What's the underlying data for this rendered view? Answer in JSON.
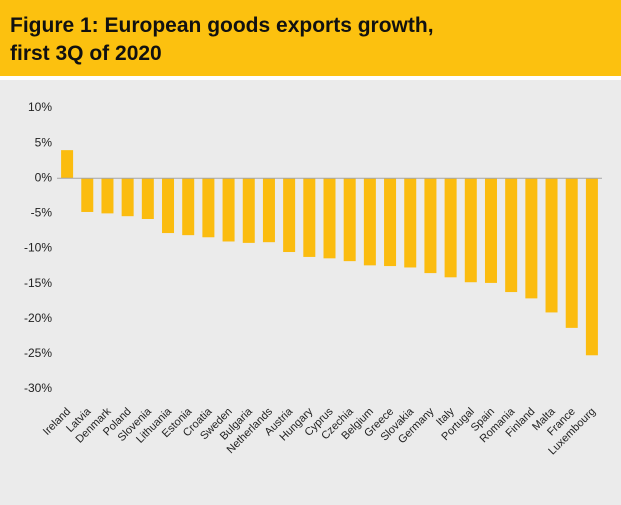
{
  "chart_data": {
    "type": "bar",
    "title": [
      "Figure 1: European goods exports growth,",
      "first 3Q of 2020"
    ],
    "categories": [
      "Ireland",
      "Latvia",
      "Denmark",
      "Poland",
      "Slovenia",
      "Lithuania",
      "Estonia",
      "Croatia",
      "Sweden",
      "Bulgaria",
      "Netherlands",
      "Austria",
      "Hungary",
      "Cyprus",
      "Czechia",
      "Belgium",
      "Greece",
      "Slovakia",
      "Germany",
      "Italy",
      "Portugal",
      "Spain",
      "Romania",
      "Finland",
      "Malta",
      "France",
      "Luxembourg"
    ],
    "values": [
      4.0,
      -4.8,
      -5.0,
      -5.4,
      -5.8,
      -7.8,
      -8.1,
      -8.4,
      -9.0,
      -9.2,
      -9.1,
      -10.5,
      -11.2,
      -11.4,
      -11.8,
      -12.4,
      -12.5,
      -12.7,
      -13.5,
      -14.1,
      -14.8,
      -14.9,
      -16.2,
      -17.1,
      -19.1,
      -21.3,
      -25.2
    ],
    "color": "#fbbc0f",
    "ylim": [
      -30,
      10
    ],
    "yticks": [
      {
        "value": 10,
        "label": "10%"
      },
      {
        "value": 5,
        "label": "5%"
      },
      {
        "value": 0,
        "label": "0%"
      },
      {
        "value": -5,
        "label": "-5%"
      },
      {
        "value": -10,
        "label": "-10%"
      },
      {
        "value": -15,
        "label": "-15%"
      },
      {
        "value": -20,
        "label": "-20%"
      },
      {
        "value": -25,
        "label": "-25%"
      },
      {
        "value": -30,
        "label": "-30%"
      }
    ]
  }
}
